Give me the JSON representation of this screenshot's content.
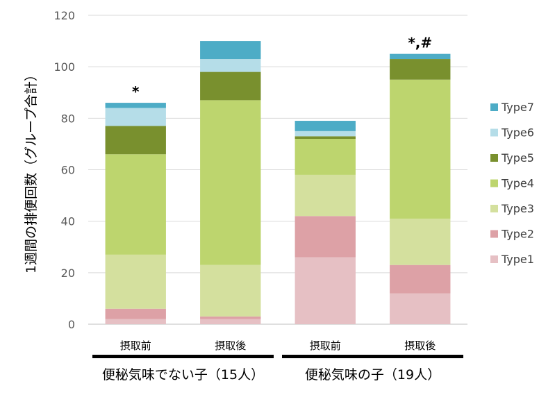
{
  "chart_data": {
    "type": "bar",
    "stacked": true,
    "categories": [
      "摂取前",
      "摂取後",
      "摂取前",
      "摂取後"
    ],
    "groups": [
      {
        "label": "便秘気味でない子（15人）",
        "categories": [
          0,
          1
        ]
      },
      {
        "label": "便秘気味の子（19人）",
        "categories": [
          2,
          3
        ]
      }
    ],
    "series": [
      {
        "name": "Type1",
        "color": "#E6C0C4",
        "values": [
          2,
          2,
          26,
          12
        ]
      },
      {
        "name": "Type2",
        "color": "#DDA1A6",
        "values": [
          4,
          1,
          16,
          11
        ]
      },
      {
        "name": "Type3",
        "color": "#D4E09E",
        "values": [
          21,
          20,
          16,
          18
        ]
      },
      {
        "name": "Type4",
        "color": "#BDD56E",
        "values": [
          39,
          64,
          14,
          54
        ]
      },
      {
        "name": "Type5",
        "color": "#79902E",
        "values": [
          11,
          11,
          1,
          8
        ]
      },
      {
        "name": "Type6",
        "color": "#B5DDE8",
        "values": [
          7,
          5,
          2,
          0
        ]
      },
      {
        "name": "Type7",
        "color": "#4DACC6",
        "values": [
          2,
          7,
          4,
          2
        ]
      }
    ],
    "annotations": [
      "*",
      "",
      "",
      "*,#"
    ],
    "ylabel": "1週間の排便回数（グループ合計）",
    "xlabel": "",
    "title": "",
    "ylim": [
      0,
      120
    ],
    "yticks": [
      0,
      20,
      40,
      60,
      80,
      100,
      120
    ],
    "grid": true,
    "legend_position": "right"
  }
}
